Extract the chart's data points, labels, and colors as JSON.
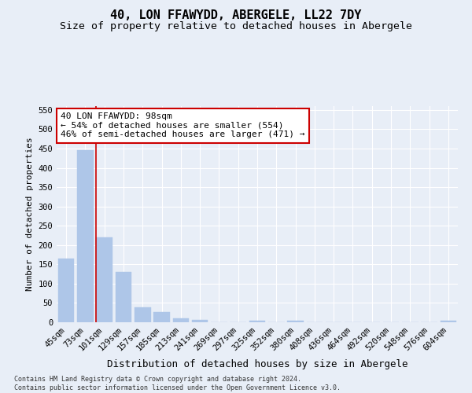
{
  "title": "40, LON FFAWYDD, ABERGELE, LL22 7DY",
  "subtitle": "Size of property relative to detached houses in Abergele",
  "xlabel": "Distribution of detached houses by size in Abergele",
  "ylabel": "Number of detached properties",
  "footer_line1": "Contains HM Land Registry data © Crown copyright and database right 2024.",
  "footer_line2": "Contains public sector information licensed under the Open Government Licence v3.0.",
  "bar_labels": [
    "45sqm",
    "73sqm",
    "101sqm",
    "129sqm",
    "157sqm",
    "185sqm",
    "213sqm",
    "241sqm",
    "269sqm",
    "297sqm",
    "325sqm",
    "352sqm",
    "380sqm",
    "408sqm",
    "436sqm",
    "464sqm",
    "492sqm",
    "520sqm",
    "548sqm",
    "576sqm",
    "604sqm"
  ],
  "bar_values": [
    165,
    445,
    220,
    130,
    38,
    26,
    10,
    6,
    0,
    0,
    5,
    0,
    5,
    0,
    0,
    0,
    0,
    0,
    0,
    0,
    5
  ],
  "bar_color": "#aec6e8",
  "bar_edge_color": "#aec6e8",
  "background_color": "#e8eef7",
  "grid_color": "#ffffff",
  "vline_x_index": 2,
  "vline_color": "#cc0000",
  "annotation_title": "40 LON FFAWYDD: 98sqm",
  "annotation_line1": "← 54% of detached houses are smaller (554)",
  "annotation_line2": "46% of semi-detached houses are larger (471) →",
  "annotation_box_color": "#ffffff",
  "annotation_border_color": "#cc0000",
  "ylim": [
    0,
    560
  ],
  "yticks": [
    0,
    50,
    100,
    150,
    200,
    250,
    300,
    350,
    400,
    450,
    500,
    550
  ],
  "title_fontsize": 11,
  "subtitle_fontsize": 9.5,
  "xlabel_fontsize": 9,
  "ylabel_fontsize": 8,
  "tick_fontsize": 7.5,
  "annotation_fontsize": 8,
  "footer_fontsize": 6
}
